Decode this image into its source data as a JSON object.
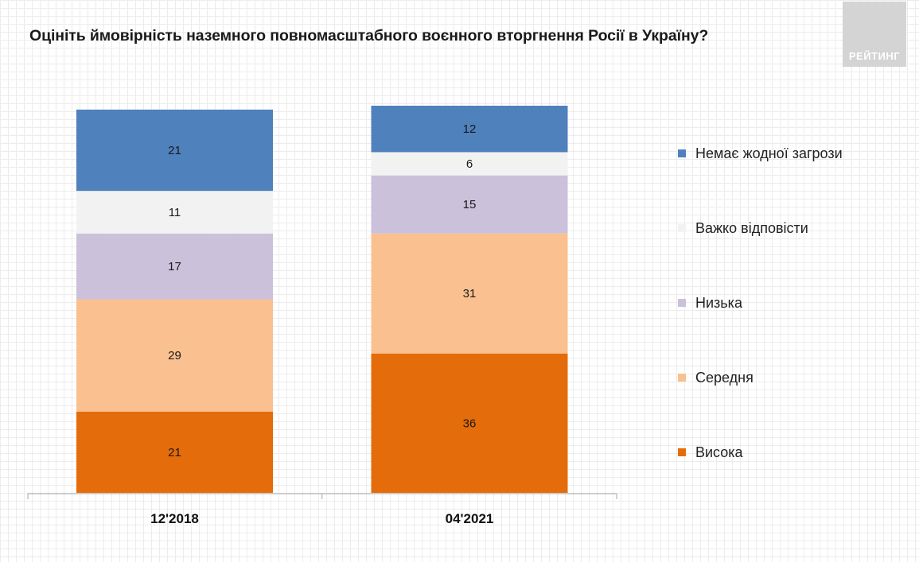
{
  "logo": {
    "text": "РЕЙТИНГ"
  },
  "chart_data": {
    "type": "bar",
    "stacked": true,
    "title": "Оцініть ймовірність наземного повномасштабного воєнного вторгнення Росії в Україну?",
    "categories": [
      "12'2018",
      "04'2021"
    ],
    "series": [
      {
        "name": "Висока",
        "color": "#e46c0a",
        "values": [
          21,
          36
        ]
      },
      {
        "name": "Середня",
        "color": "#fac090",
        "values": [
          29,
          31
        ]
      },
      {
        "name": "Низька",
        "color": "#ccc1da",
        "values": [
          17,
          15
        ]
      },
      {
        "name": "Важко відповісти",
        "color": "#f2f2f2",
        "values": [
          11,
          6
        ]
      },
      {
        "name": "Немає жодної загрози",
        "color": "#4f81bd",
        "values": [
          21,
          12
        ]
      }
    ],
    "legend_order": [
      "Немає жодної загрози",
      "Важко відповісти",
      "Низька",
      "Середня",
      "Висока"
    ],
    "legend_position": "right",
    "ylim": [
      0,
      100
    ],
    "grid": false,
    "xlabel": "",
    "ylabel": ""
  }
}
